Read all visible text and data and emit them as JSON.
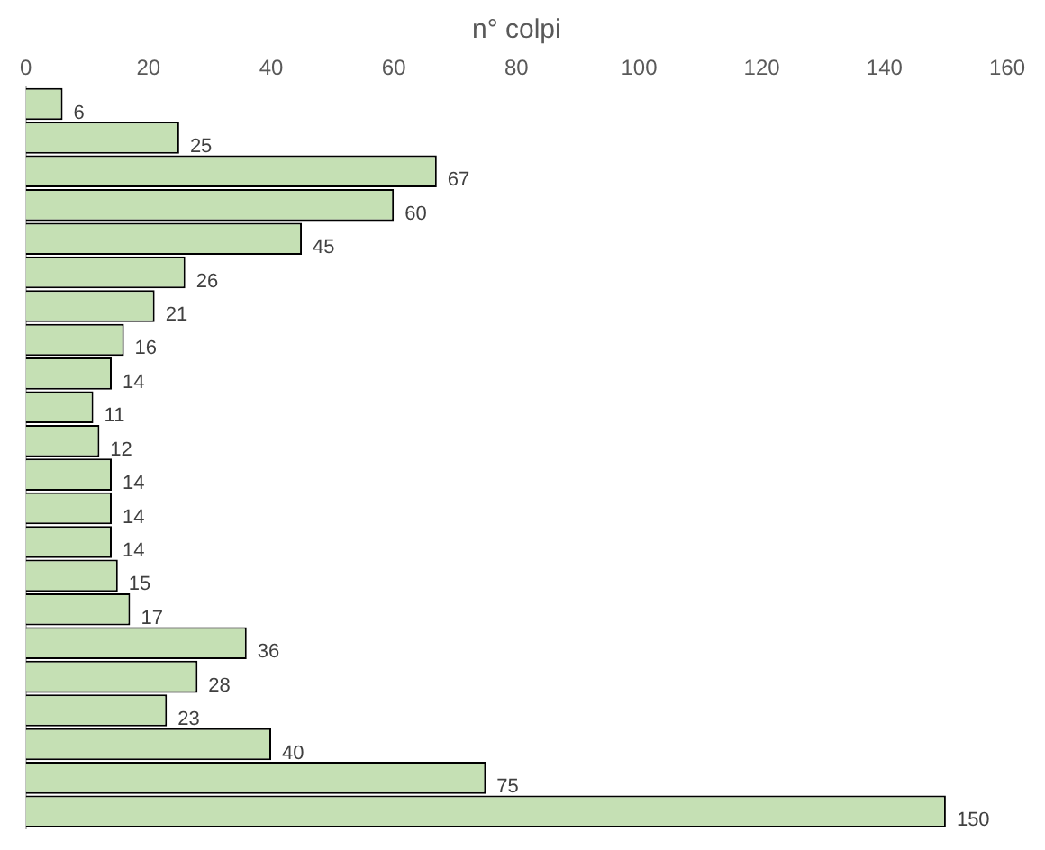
{
  "chart_data": {
    "type": "bar",
    "orientation": "horizontal",
    "xlabel": "n° colpi",
    "categories": [
      null,
      null,
      null,
      null,
      null,
      null,
      null,
      null,
      null,
      null,
      null,
      null,
      null,
      null,
      null,
      null,
      null,
      null,
      null,
      null,
      null,
      null
    ],
    "values": [
      6,
      25,
      67,
      60,
      45,
      26,
      21,
      16,
      14,
      11,
      12,
      14,
      14,
      14,
      15,
      17,
      36,
      28,
      23,
      40,
      75,
      150
    ],
    "color": "#c5e0b4",
    "xlim": [
      0,
      160
    ],
    "xticks": [
      0,
      20,
      40,
      60,
      80,
      100,
      120,
      140,
      160
    ],
    "data_labels": true,
    "grid": false,
    "legend": false
  }
}
